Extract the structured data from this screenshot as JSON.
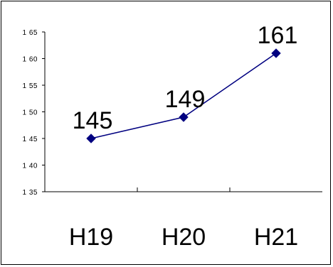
{
  "chart_data": {
    "type": "line",
    "title": "",
    "xlabel": "",
    "ylabel": "",
    "categories": [
      "H19",
      "H20",
      "H21"
    ],
    "series": [
      {
        "values": [
          145,
          149,
          161
        ],
        "color": "#000080",
        "marker": "diamond"
      }
    ],
    "data_labels": [
      "145",
      "149",
      "161"
    ],
    "ylim": [
      135,
      165
    ],
    "yticks": [
      135,
      140,
      145,
      150,
      155,
      160,
      165
    ],
    "ytick_labels": [
      "1 35",
      "1 40",
      "1 45",
      "1 50",
      "1 55",
      "1 60",
      "1 65"
    ],
    "grid": false,
    "legend": "none"
  }
}
